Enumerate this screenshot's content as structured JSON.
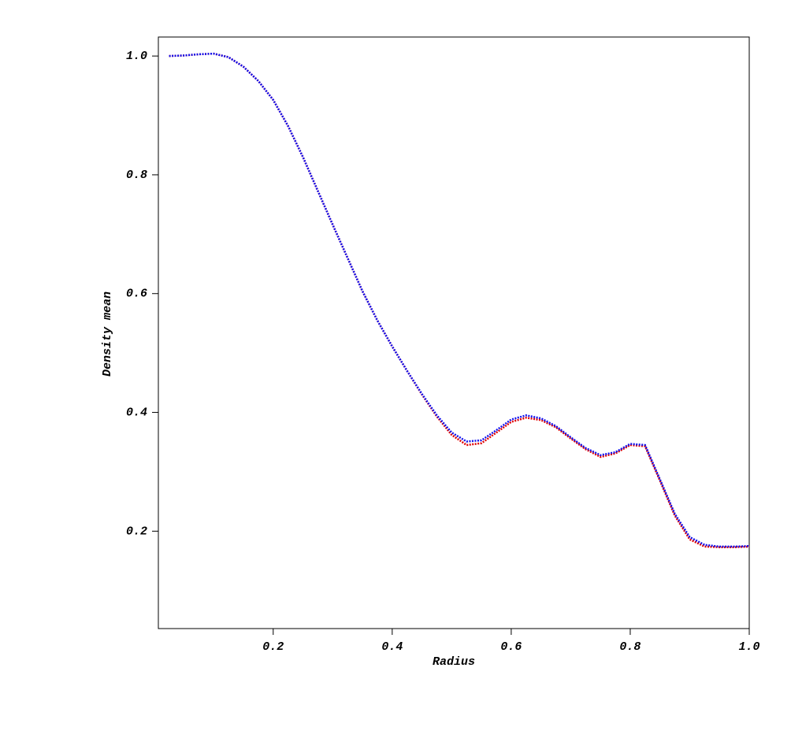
{
  "chart_data": {
    "type": "line",
    "xlabel": "Radius",
    "ylabel": "Density mean",
    "x": [
      0.025,
      0.05,
      0.075,
      0.1,
      0.125,
      0.15,
      0.175,
      0.2,
      0.225,
      0.25,
      0.275,
      0.3,
      0.325,
      0.35,
      0.375,
      0.4,
      0.425,
      0.45,
      0.475,
      0.5,
      0.525,
      0.55,
      0.575,
      0.6,
      0.625,
      0.65,
      0.675,
      0.7,
      0.725,
      0.75,
      0.775,
      0.8,
      0.825,
      0.85,
      0.875,
      0.9,
      0.925,
      0.95,
      0.975,
      1.0
    ],
    "series": [
      {
        "color": "#e00000",
        "values": [
          1.0,
          1.001,
          1.003,
          1.004,
          0.998,
          0.982,
          0.958,
          0.926,
          0.882,
          0.83,
          0.773,
          0.716,
          0.66,
          0.604,
          0.555,
          0.511,
          0.47,
          0.43,
          0.393,
          0.362,
          0.345,
          0.348,
          0.366,
          0.384,
          0.391,
          0.387,
          0.375,
          0.356,
          0.338,
          0.325,
          0.331,
          0.345,
          0.343,
          0.285,
          0.226,
          0.186,
          0.174,
          0.173,
          0.173,
          0.174
        ]
      },
      {
        "color": "#1010ee",
        "values": [
          1.0,
          1.001,
          1.003,
          1.004,
          0.998,
          0.982,
          0.958,
          0.926,
          0.882,
          0.83,
          0.773,
          0.716,
          0.66,
          0.604,
          0.555,
          0.511,
          0.47,
          0.431,
          0.395,
          0.366,
          0.351,
          0.353,
          0.37,
          0.388,
          0.395,
          0.39,
          0.377,
          0.358,
          0.34,
          0.328,
          0.333,
          0.347,
          0.345,
          0.287,
          0.229,
          0.19,
          0.177,
          0.174,
          0.174,
          0.175
        ]
      }
    ],
    "xlim": [
      0.007,
      1.0
    ],
    "ylim": [
      0.036,
      1.032
    ],
    "xticks": [
      0.2,
      0.4,
      0.6,
      0.8,
      {
        "value": 1.0,
        "label": "1.0"
      }
    ],
    "yticks": [
      0.2,
      0.4,
      0.6,
      0.8,
      {
        "value": 1.0,
        "label": "1.0"
      }
    ]
  }
}
